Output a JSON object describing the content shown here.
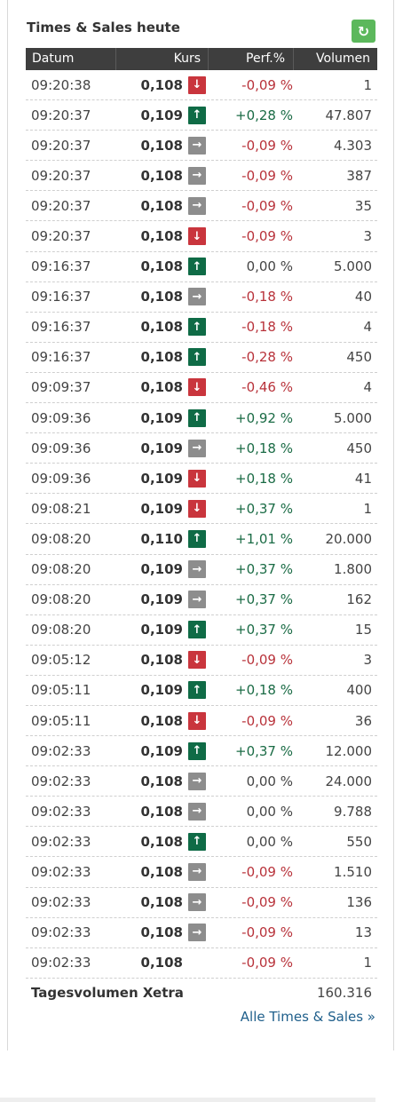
{
  "widget": {
    "title": "Times & Sales heute",
    "refresh_icon": "refresh-icon",
    "refresh_color": "#5cb85c"
  },
  "columns": {
    "date": "Datum",
    "price": "Kurs",
    "perf": "Perf.%",
    "volume": "Volumen"
  },
  "colors": {
    "up": "#0f6b46",
    "down": "#c9353d",
    "flat": "#8d8d8d",
    "positive_text": "#1a6b45",
    "negative_text": "#b8323a"
  },
  "rows": [
    {
      "time": "09:20:38",
      "price": "0,108",
      "dir": "down",
      "perf": "-0,09 %",
      "sign": "neg",
      "volume": "1"
    },
    {
      "time": "09:20:37",
      "price": "0,109",
      "dir": "up",
      "perf": "+0,28 %",
      "sign": "pos",
      "volume": "47.807"
    },
    {
      "time": "09:20:37",
      "price": "0,108",
      "dir": "flat",
      "perf": "-0,09 %",
      "sign": "neg",
      "volume": "4.303"
    },
    {
      "time": "09:20:37",
      "price": "0,108",
      "dir": "flat",
      "perf": "-0,09 %",
      "sign": "neg",
      "volume": "387"
    },
    {
      "time": "09:20:37",
      "price": "0,108",
      "dir": "flat",
      "perf": "-0,09 %",
      "sign": "neg",
      "volume": "35"
    },
    {
      "time": "09:20:37",
      "price": "0,108",
      "dir": "down",
      "perf": "-0,09 %",
      "sign": "neg",
      "volume": "3"
    },
    {
      "time": "09:16:37",
      "price": "0,108",
      "dir": "up",
      "perf": "0,00 %",
      "sign": "zero",
      "volume": "5.000"
    },
    {
      "time": "09:16:37",
      "price": "0,108",
      "dir": "flat",
      "perf": "-0,18 %",
      "sign": "neg",
      "volume": "40"
    },
    {
      "time": "09:16:37",
      "price": "0,108",
      "dir": "up",
      "perf": "-0,18 %",
      "sign": "neg",
      "volume": "4"
    },
    {
      "time": "09:16:37",
      "price": "0,108",
      "dir": "up",
      "perf": "-0,28 %",
      "sign": "neg",
      "volume": "450"
    },
    {
      "time": "09:09:37",
      "price": "0,108",
      "dir": "down",
      "perf": "-0,46 %",
      "sign": "neg",
      "volume": "4"
    },
    {
      "time": "09:09:36",
      "price": "0,109",
      "dir": "up",
      "perf": "+0,92 %",
      "sign": "pos",
      "volume": "5.000"
    },
    {
      "time": "09:09:36",
      "price": "0,109",
      "dir": "flat",
      "perf": "+0,18 %",
      "sign": "pos",
      "volume": "450"
    },
    {
      "time": "09:09:36",
      "price": "0,109",
      "dir": "down",
      "perf": "+0,18 %",
      "sign": "pos",
      "volume": "41"
    },
    {
      "time": "09:08:21",
      "price": "0,109",
      "dir": "down",
      "perf": "+0,37 %",
      "sign": "pos",
      "volume": "1"
    },
    {
      "time": "09:08:20",
      "price": "0,110",
      "dir": "up",
      "perf": "+1,01 %",
      "sign": "pos",
      "volume": "20.000"
    },
    {
      "time": "09:08:20",
      "price": "0,109",
      "dir": "flat",
      "perf": "+0,37 %",
      "sign": "pos",
      "volume": "1.800"
    },
    {
      "time": "09:08:20",
      "price": "0,109",
      "dir": "flat",
      "perf": "+0,37 %",
      "sign": "pos",
      "volume": "162"
    },
    {
      "time": "09:08:20",
      "price": "0,109",
      "dir": "up",
      "perf": "+0,37 %",
      "sign": "pos",
      "volume": "15"
    },
    {
      "time": "09:05:12",
      "price": "0,108",
      "dir": "down",
      "perf": "-0,09 %",
      "sign": "neg",
      "volume": "3"
    },
    {
      "time": "09:05:11",
      "price": "0,109",
      "dir": "up",
      "perf": "+0,18 %",
      "sign": "pos",
      "volume": "400"
    },
    {
      "time": "09:05:11",
      "price": "0,108",
      "dir": "down",
      "perf": "-0,09 %",
      "sign": "neg",
      "volume": "36"
    },
    {
      "time": "09:02:33",
      "price": "0,109",
      "dir": "up",
      "perf": "+0,37 %",
      "sign": "pos",
      "volume": "12.000"
    },
    {
      "time": "09:02:33",
      "price": "0,108",
      "dir": "flat",
      "perf": "0,00 %",
      "sign": "zero",
      "volume": "24.000"
    },
    {
      "time": "09:02:33",
      "price": "0,108",
      "dir": "flat",
      "perf": "0,00 %",
      "sign": "zero",
      "volume": "9.788"
    },
    {
      "time": "09:02:33",
      "price": "0,108",
      "dir": "up",
      "perf": "0,00 %",
      "sign": "zero",
      "volume": "550"
    },
    {
      "time": "09:02:33",
      "price": "0,108",
      "dir": "flat",
      "perf": "-0,09 %",
      "sign": "neg",
      "volume": "1.510"
    },
    {
      "time": "09:02:33",
      "price": "0,108",
      "dir": "flat",
      "perf": "-0,09 %",
      "sign": "neg",
      "volume": "136"
    },
    {
      "time": "09:02:33",
      "price": "0,108",
      "dir": "flat",
      "perf": "-0,09 %",
      "sign": "neg",
      "volume": "13"
    },
    {
      "time": "09:02:33",
      "price": "0,108",
      "dir": "none",
      "perf": "-0,09 %",
      "sign": "neg",
      "volume": "1"
    }
  ],
  "footer": {
    "label": "Tagesvolumen Xetra",
    "value": "160.316",
    "link": "Alle Times & Sales »"
  }
}
